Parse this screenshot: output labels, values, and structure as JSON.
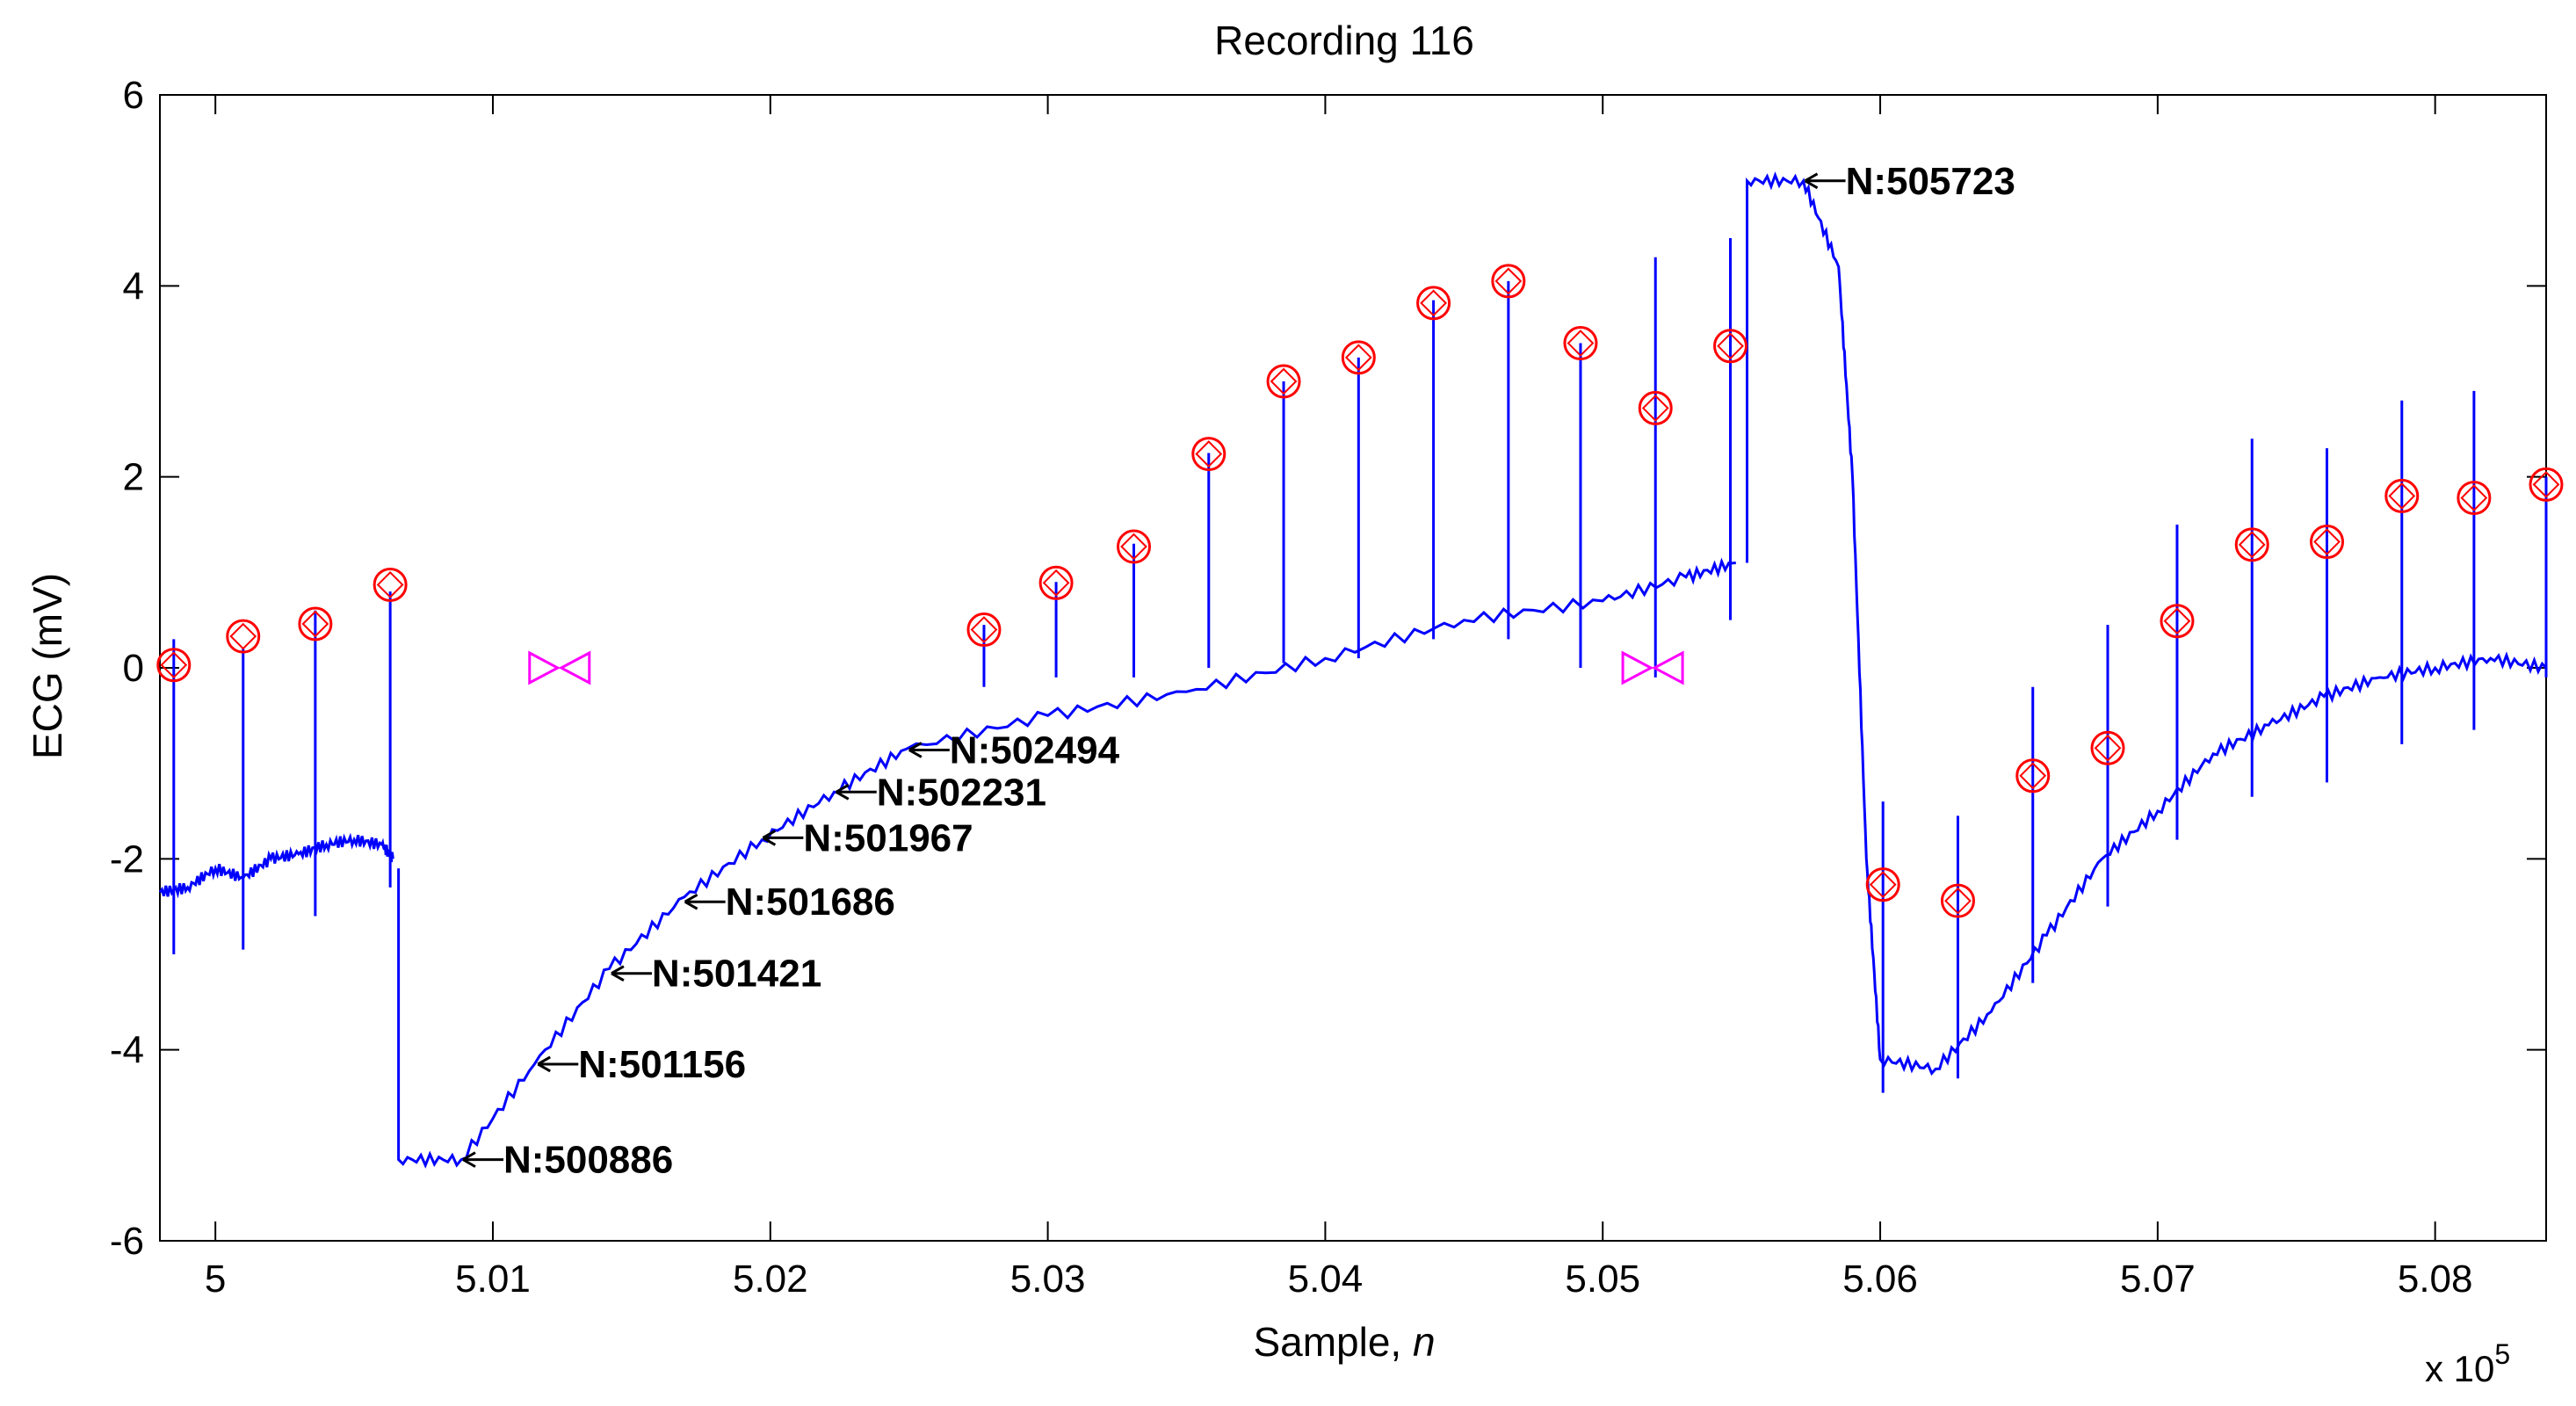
{
  "chart_data": {
    "type": "line",
    "title": "Recording 116",
    "xlabel_main": "Sample, ",
    "xlabel_var": "n",
    "ylabel": "ECG (mV)",
    "x_multiplier_base": "x 10",
    "x_multiplier_exp": "5",
    "xlim": [
      4.998,
      5.084
    ],
    "ylim": [
      -6,
      6
    ],
    "x_ticks": [
      5.0,
      5.01,
      5.02,
      5.03,
      5.04,
      5.05,
      5.06,
      5.07,
      5.08
    ],
    "x_tick_labels": [
      "5",
      "5.01",
      "5.02",
      "5.03",
      "5.04",
      "5.05",
      "5.06",
      "5.07",
      "5.08"
    ],
    "y_ticks": [
      -6,
      -4,
      -2,
      0,
      2,
      4,
      6
    ],
    "y_tick_labels": [
      "-6",
      "-4",
      "-2",
      "0",
      "2",
      "4",
      "6"
    ],
    "colors": {
      "signal": "#0000ff",
      "beat_marker": "#ff0000",
      "gap_marker": "#ff00ff",
      "axis": "#000000"
    },
    "baseline_segments": [
      {
        "x": [
          4.998,
          4.999,
          5.0,
          5.001,
          5.002,
          5.003,
          5.004,
          5.005,
          5.006,
          5.0064
        ],
        "y": [
          -2.35,
          -2.3,
          -2.1,
          -2.2,
          -2.0,
          -1.95,
          -1.85,
          -1.8,
          -1.85,
          -2.0
        ]
      },
      {
        "x": [
          5.0066,
          5.0066,
          5.00886,
          5.0115,
          5.0142,
          5.0169,
          5.0197,
          5.0223,
          5.0249,
          5.03,
          5.035,
          5.04,
          5.045,
          5.05,
          5.053,
          5.0548
        ],
        "y": [
          -2.1,
          -5.15,
          -5.15,
          -4.15,
          -3.15,
          -2.4,
          -1.8,
          -1.3,
          -0.85,
          -0.5,
          -0.25,
          0.1,
          0.5,
          0.7,
          0.95,
          1.1
        ]
      },
      {
        "x": [
          5.0552,
          5.0552,
          5.05723,
          5.0585,
          5.059,
          5.0595,
          5.06,
          5.062,
          5.064,
          5.066,
          5.068,
          5.07,
          5.072,
          5.074,
          5.076,
          5.078,
          5.08,
          5.082,
          5.084
        ],
        "y": [
          1.1,
          5.1,
          5.1,
          4.2,
          2.0,
          -2.0,
          -4.1,
          -4.2,
          -3.6,
          -2.8,
          -2.0,
          -1.5,
          -0.9,
          -0.6,
          -0.3,
          -0.1,
          0.0,
          0.1,
          0.0
        ]
      }
    ],
    "beat_spikes": [
      {
        "x": 4.9985,
        "top": 0.3,
        "bottom": -3.0
      },
      {
        "x": 5.001,
        "top": 0.2,
        "bottom": -2.95
      },
      {
        "x": 5.0036,
        "top": 0.6,
        "bottom": -2.6
      },
      {
        "x": 5.0063,
        "top": 0.8,
        "bottom": -2.3
      },
      {
        "x": 5.0277,
        "top": 0.45,
        "bottom": -0.2
      },
      {
        "x": 5.0303,
        "top": 0.9,
        "bottom": -0.1
      },
      {
        "x": 5.0331,
        "top": 1.3,
        "bottom": -0.1
      },
      {
        "x": 5.0358,
        "top": 2.25,
        "bottom": 0.0
      },
      {
        "x": 5.0385,
        "top": 3.0,
        "bottom": 0.05
      },
      {
        "x": 5.0412,
        "top": 3.25,
        "bottom": 0.1
      },
      {
        "x": 5.0439,
        "top": 3.85,
        "bottom": 0.3
      },
      {
        "x": 5.0466,
        "top": 4.05,
        "bottom": 0.3
      },
      {
        "x": 5.0492,
        "top": 3.4,
        "bottom": 0.0
      },
      {
        "x": 5.0519,
        "top": 4.3,
        "bottom": -0.1
      },
      {
        "x": 5.0546,
        "top": 4.5,
        "bottom": 0.5
      },
      {
        "x": 5.0601,
        "top": -1.4,
        "bottom": -4.45
      },
      {
        "x": 5.0628,
        "top": -1.55,
        "bottom": -4.3
      },
      {
        "x": 5.0655,
        "top": -0.2,
        "bottom": -3.3
      },
      {
        "x": 5.0682,
        "top": 0.45,
        "bottom": -2.5
      },
      {
        "x": 5.0707,
        "top": 1.5,
        "bottom": -1.8
      },
      {
        "x": 5.0734,
        "top": 2.4,
        "bottom": -1.35
      },
      {
        "x": 5.0761,
        "top": 2.3,
        "bottom": -1.2
      },
      {
        "x": 5.0788,
        "top": 2.8,
        "bottom": -0.8
      },
      {
        "x": 5.0814,
        "top": 2.9,
        "bottom": -0.65
      },
      {
        "x": 5.084,
        "top": 2.0,
        "bottom": -0.1
      }
    ],
    "beat_markers": [
      {
        "x": 4.9985,
        "y": 0.03
      },
      {
        "x": 5.001,
        "y": 0.33
      },
      {
        "x": 5.0036,
        "y": 0.46
      },
      {
        "x": 5.0063,
        "y": 0.87
      },
      {
        "x": 5.0277,
        "y": 0.4
      },
      {
        "x": 5.0303,
        "y": 0.89
      },
      {
        "x": 5.0331,
        "y": 1.27
      },
      {
        "x": 5.0358,
        "y": 2.24
      },
      {
        "x": 5.0385,
        "y": 3.0
      },
      {
        "x": 5.0412,
        "y": 3.25
      },
      {
        "x": 5.0439,
        "y": 3.82
      },
      {
        "x": 5.0466,
        "y": 4.05
      },
      {
        "x": 5.0492,
        "y": 3.4
      },
      {
        "x": 5.0519,
        "y": 2.72
      },
      {
        "x": 5.0546,
        "y": 3.37
      },
      {
        "x": 5.0601,
        "y": -2.27
      },
      {
        "x": 5.0628,
        "y": -2.44
      },
      {
        "x": 5.0655,
        "y": -1.13
      },
      {
        "x": 5.0682,
        "y": -0.84
      },
      {
        "x": 5.0707,
        "y": 0.49
      },
      {
        "x": 5.0734,
        "y": 1.29
      },
      {
        "x": 5.0761,
        "y": 1.32
      },
      {
        "x": 5.0788,
        "y": 1.8
      },
      {
        "x": 5.0814,
        "y": 1.78
      },
      {
        "x": 5.084,
        "y": 1.92
      }
    ],
    "gap_markers": [
      {
        "x": 5.0124,
        "y": 0.0
      },
      {
        "x": 5.0518,
        "y": 0.0
      }
    ],
    "annotations": [
      {
        "label": "N:500886",
        "x": 5.00886,
        "y": -5.15
      },
      {
        "label": "N:501156",
        "x": 5.01156,
        "y": -4.15
      },
      {
        "label": "N:501421",
        "x": 5.01421,
        "y": -3.2
      },
      {
        "label": "N:501686",
        "x": 5.01686,
        "y": -2.45
      },
      {
        "label": "N:501967",
        "x": 5.01967,
        "y": -1.78
      },
      {
        "label": "N:502231",
        "x": 5.02231,
        "y": -1.3
      },
      {
        "label": "N:502494",
        "x": 5.02494,
        "y": -0.86
      },
      {
        "label": "N:505723",
        "x": 5.05723,
        "y": 5.1
      }
    ]
  }
}
